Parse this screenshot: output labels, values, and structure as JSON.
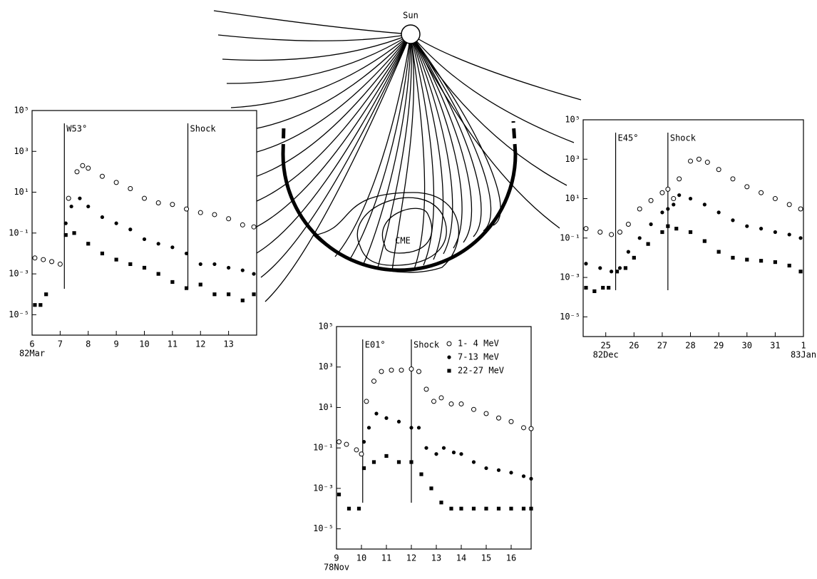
{
  "diagram": {
    "sun": "Sun",
    "cme": "CME"
  },
  "chart_data": [
    {
      "type": "scatter",
      "log_y": true,
      "xlim": [
        6,
        14
      ],
      "xticks": [
        6,
        7,
        8,
        9,
        10,
        11,
        12,
        13
      ],
      "ylim": [
        1e-06,
        100000
      ],
      "yticks": [
        {
          "value": 1e-05,
          "label": "10⁻⁵"
        },
        {
          "value": 0.001,
          "label": "10⁻³"
        },
        {
          "value": 0.1,
          "label": "10⁻¹"
        },
        {
          "value": 10,
          "label": "10¹"
        },
        {
          "value": 1000,
          "label": "10³"
        },
        {
          "value": 100000,
          "label": "10⁵"
        }
      ],
      "date_labels": [
        {
          "x": 6,
          "label": "82Mar"
        }
      ],
      "annotations": [
        {
          "x": 7.15,
          "text": "W53°"
        },
        {
          "x": 11.55,
          "text": "Shock"
        }
      ],
      "series": [
        {
          "marker": "open-circle",
          "color": "#000000",
          "x": [
            6.1,
            6.4,
            6.7,
            7.0,
            7.3,
            7.6,
            7.8,
            8.0,
            8.5,
            9.0,
            9.5,
            10.0,
            10.5,
            11.0,
            11.5,
            12.0,
            12.5,
            13.0,
            13.5,
            13.9
          ],
          "values": [
            0.006,
            0.005,
            0.004,
            0.003,
            5,
            100,
            200,
            150,
            60,
            30,
            15,
            5,
            3,
            2.5,
            1.5,
            1,
            0.8,
            0.5,
            0.25,
            0.2
          ]
        },
        {
          "marker": "filled-circle",
          "color": "#000000",
          "x": [
            7.2,
            7.4,
            7.7,
            8.0,
            8.5,
            9.0,
            9.5,
            10.0,
            10.5,
            11.0,
            11.5,
            12.0,
            12.5,
            13.0,
            13.5,
            13.9
          ],
          "values": [
            0.3,
            2,
            5,
            2,
            0.6,
            0.3,
            0.15,
            0.05,
            0.03,
            0.02,
            0.01,
            0.003,
            0.003,
            0.002,
            0.0015,
            0.001
          ]
        },
        {
          "marker": "square",
          "color": "#000000",
          "x": [
            6.1,
            6.3,
            6.5,
            7.2,
            7.5,
            8.0,
            8.5,
            9.0,
            9.5,
            10.0,
            10.5,
            11.0,
            11.5,
            12.0,
            12.5,
            13.0,
            13.5,
            13.9
          ],
          "values": [
            3e-05,
            3e-05,
            0.0001,
            0.08,
            0.1,
            0.03,
            0.01,
            0.005,
            0.003,
            0.002,
            0.001,
            0.0004,
            0.0002,
            0.0003,
            0.0001,
            0.0001,
            5e-05,
            0.0001
          ]
        }
      ]
    },
    {
      "type": "scatter",
      "log_y": true,
      "xlim": [
        9,
        16.8
      ],
      "xticks": [
        9,
        10,
        11,
        12,
        13,
        14,
        15,
        16
      ],
      "ylim": [
        1e-06,
        100000
      ],
      "yticks": [
        {
          "value": 1e-05,
          "label": "10⁻⁵"
        },
        {
          "value": 0.001,
          "label": "10⁻³"
        },
        {
          "value": 0.1,
          "label": "10⁻¹"
        },
        {
          "value": 10,
          "label": "10¹"
        },
        {
          "value": 1000,
          "label": "10³"
        },
        {
          "value": 100000,
          "label": "10⁵"
        }
      ],
      "date_labels": [
        {
          "x": 9,
          "label": "78Nov"
        }
      ],
      "annotations": [
        {
          "x": 10.05,
          "text": "E01°"
        },
        {
          "x": 12.0,
          "text": "Shock"
        }
      ],
      "legend": "upper right",
      "series": [
        {
          "name": "1- 4 MeV",
          "marker": "open-circle",
          "color": "#000000",
          "x": [
            9.1,
            9.4,
            9.8,
            10.0,
            10.2,
            10.5,
            10.8,
            11.2,
            11.6,
            12.0,
            12.3,
            12.6,
            12.9,
            13.2,
            13.6,
            14.0,
            14.5,
            15.0,
            15.5,
            16.0,
            16.5,
            16.8
          ],
          "values": [
            0.2,
            0.15,
            0.08,
            0.05,
            20,
            200,
            600,
            700,
            700,
            800,
            600,
            80,
            20,
            30,
            15,
            15,
            8,
            5,
            3,
            2,
            1,
            0.9
          ]
        },
        {
          "name": "7-13 MeV",
          "marker": "filled-circle",
          "color": "#000000",
          "x": [
            10.1,
            10.3,
            10.6,
            11.0,
            11.5,
            12.0,
            12.3,
            12.6,
            13.0,
            13.3,
            13.7,
            14.0,
            14.5,
            15.0,
            15.5,
            16.0,
            16.5,
            16.8
          ],
          "values": [
            0.2,
            1,
            5,
            3,
            2,
            1,
            1,
            0.1,
            0.05,
            0.1,
            0.06,
            0.05,
            0.02,
            0.01,
            0.008,
            0.006,
            0.004,
            0.003
          ]
        },
        {
          "name": "22-27 MeV",
          "marker": "square",
          "color": "#000000",
          "x": [
            9.1,
            9.5,
            9.9,
            10.1,
            10.5,
            11.0,
            11.5,
            12.0,
            12.4,
            12.8,
            13.2,
            13.6,
            14.0,
            14.5,
            15.0,
            15.5,
            16.0,
            16.5,
            16.8
          ],
          "values": [
            0.0005,
            0.0001,
            0.0001,
            0.01,
            0.02,
            0.04,
            0.02,
            0.02,
            0.005,
            0.001,
            0.0002,
            0.0001,
            0.0001,
            0.0001,
            0.0001,
            0.0001,
            0.0001,
            0.0001,
            0.0001
          ]
        }
      ]
    },
    {
      "type": "scatter",
      "log_y": true,
      "xlim": [
        24.2,
        32
      ],
      "xticks": [
        25,
        26,
        27,
        28,
        29,
        30,
        31,
        {
          "value": 32,
          "label": "1"
        }
      ],
      "ylim": [
        1e-06,
        100000
      ],
      "yticks": [
        {
          "value": 1e-05,
          "label": "10⁻⁵"
        },
        {
          "value": 0.001,
          "label": "10⁻³"
        },
        {
          "value": 0.1,
          "label": "10⁻¹"
        },
        {
          "value": 10,
          "label": "10¹"
        },
        {
          "value": 1000,
          "label": "10³"
        },
        {
          "value": 100000,
          "label": "10⁵"
        }
      ],
      "date_labels": [
        {
          "x": 25,
          "label": "82Dec"
        },
        {
          "x": 32,
          "label": "83Jan"
        }
      ],
      "annotations": [
        {
          "x": 25.35,
          "text": "E45°"
        },
        {
          "x": 27.2,
          "text": "Shock"
        }
      ],
      "series": [
        {
          "marker": "open-circle",
          "color": "#000000",
          "x": [
            24.3,
            24.8,
            25.2,
            25.5,
            25.8,
            26.2,
            26.6,
            27.0,
            27.2,
            27.4,
            27.6,
            28.0,
            28.3,
            28.6,
            29.0,
            29.5,
            30.0,
            30.5,
            31.0,
            31.5,
            31.9
          ],
          "values": [
            0.3,
            0.2,
            0.15,
            0.2,
            0.5,
            3,
            8,
            20,
            30,
            10,
            100,
            800,
            1000,
            700,
            300,
            100,
            40,
            20,
            10,
            5,
            3
          ]
        },
        {
          "marker": "filled-circle",
          "color": "#000000",
          "x": [
            24.3,
            24.8,
            25.2,
            25.5,
            25.8,
            26.2,
            26.6,
            27.0,
            27.2,
            27.4,
            27.6,
            28.0,
            28.5,
            29.0,
            29.5,
            30.0,
            30.5,
            31.0,
            31.5,
            31.9
          ],
          "values": [
            0.005,
            0.003,
            0.002,
            0.003,
            0.02,
            0.1,
            0.5,
            2,
            3,
            5,
            15,
            10,
            5,
            2,
            0.8,
            0.4,
            0.3,
            0.2,
            0.15,
            0.1
          ]
        },
        {
          "marker": "square",
          "color": "#000000",
          "x": [
            24.3,
            24.6,
            24.9,
            25.1,
            25.4,
            25.7,
            26.0,
            26.5,
            27.0,
            27.2,
            27.5,
            28.0,
            28.5,
            29.0,
            29.5,
            30.0,
            30.5,
            31.0,
            31.5,
            31.9
          ],
          "values": [
            0.0003,
            0.0002,
            0.0003,
            0.0003,
            0.002,
            0.003,
            0.01,
            0.05,
            0.2,
            0.4,
            0.3,
            0.2,
            0.07,
            0.02,
            0.01,
            0.008,
            0.007,
            0.006,
            0.004,
            0.002
          ]
        }
      ]
    }
  ]
}
